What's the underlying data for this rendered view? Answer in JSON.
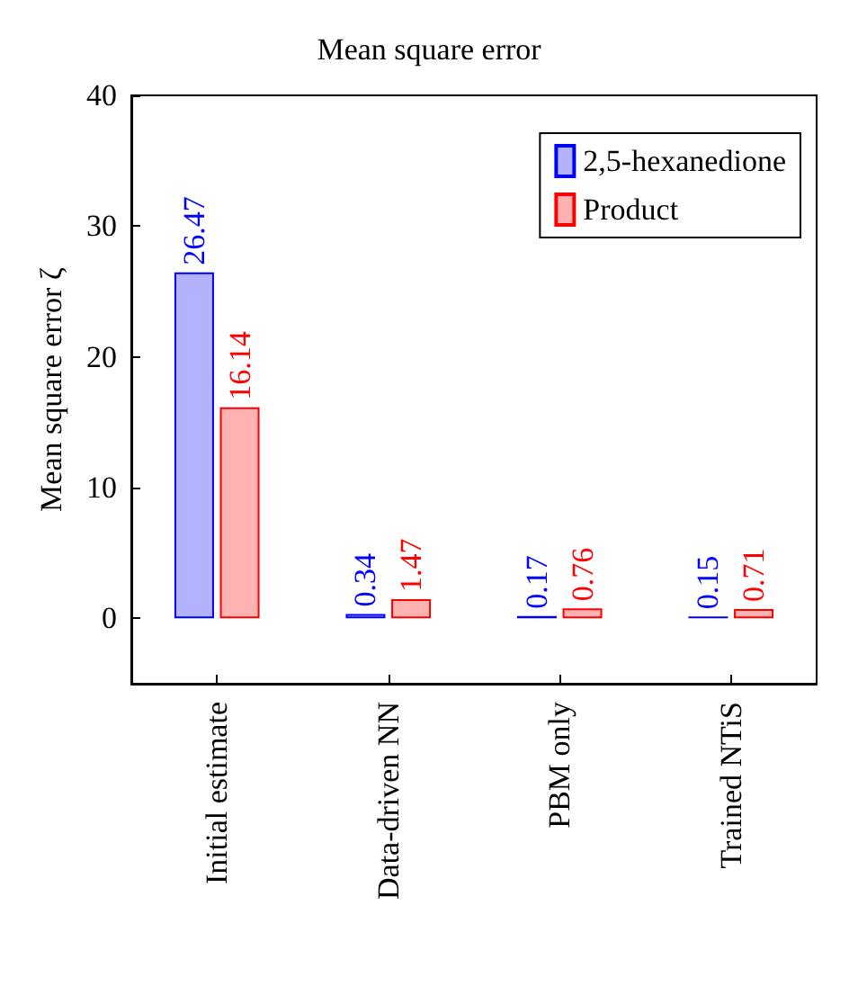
{
  "chart_data": {
    "type": "bar",
    "title": "Mean square error",
    "ylabel": "Mean square error ζ",
    "categories": [
      "Initial estimate",
      "Data-driven NN",
      "PBM only",
      "Trained NTiS"
    ],
    "series": [
      {
        "name": "2,5-hexanedione",
        "color": "#0000ff",
        "values": [
          26.47,
          0.34,
          0.17,
          0.15
        ]
      },
      {
        "name": "Product",
        "color": "#ff0000",
        "values": [
          16.14,
          1.47,
          0.76,
          0.71
        ]
      }
    ],
    "ylim": [
      -5,
      40
    ],
    "yticks": [
      0,
      10,
      20,
      30,
      40
    ],
    "data_labels": true,
    "legend": "top right",
    "grid": false
  }
}
